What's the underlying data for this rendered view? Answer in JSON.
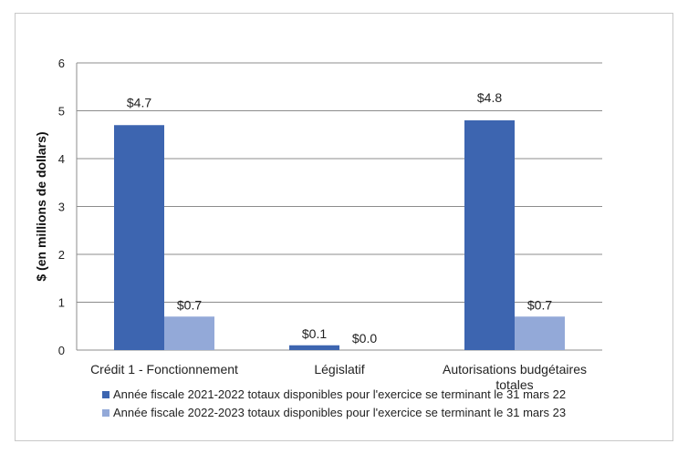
{
  "chart_data": {
    "type": "bar",
    "title": "",
    "xlabel": "",
    "ylabel": "$ (en millions de dollars)",
    "ylim": [
      0,
      6
    ],
    "yticks": [
      "0",
      "1",
      "2",
      "3",
      "4",
      "5",
      "6"
    ],
    "categories": [
      [
        "Crédit 1 - Fonctionnement"
      ],
      [
        "Législatif"
      ],
      [
        "Autorisations budgétaires",
        "totales"
      ]
    ],
    "series": [
      {
        "name": "Année fiscale 2021-2022 totaux disponibles pour l'exercice se terminant le 31 mars 22",
        "color": "#3d65b0",
        "values": [
          4.7,
          0.1,
          4.8
        ],
        "labels": [
          "$4.7",
          "$0.1",
          "$4.8"
        ]
      },
      {
        "name": "Année fiscale 2022-2023 totaux disponibles pour l'exercice se terminant le 31 mars 23",
        "color": "#93a9d8",
        "values": [
          0.7,
          0.0,
          0.7
        ],
        "labels": [
          "$0.7",
          "$0.0",
          "$0.7"
        ]
      }
    ],
    "grid": true,
    "legend_position": "bottom"
  }
}
